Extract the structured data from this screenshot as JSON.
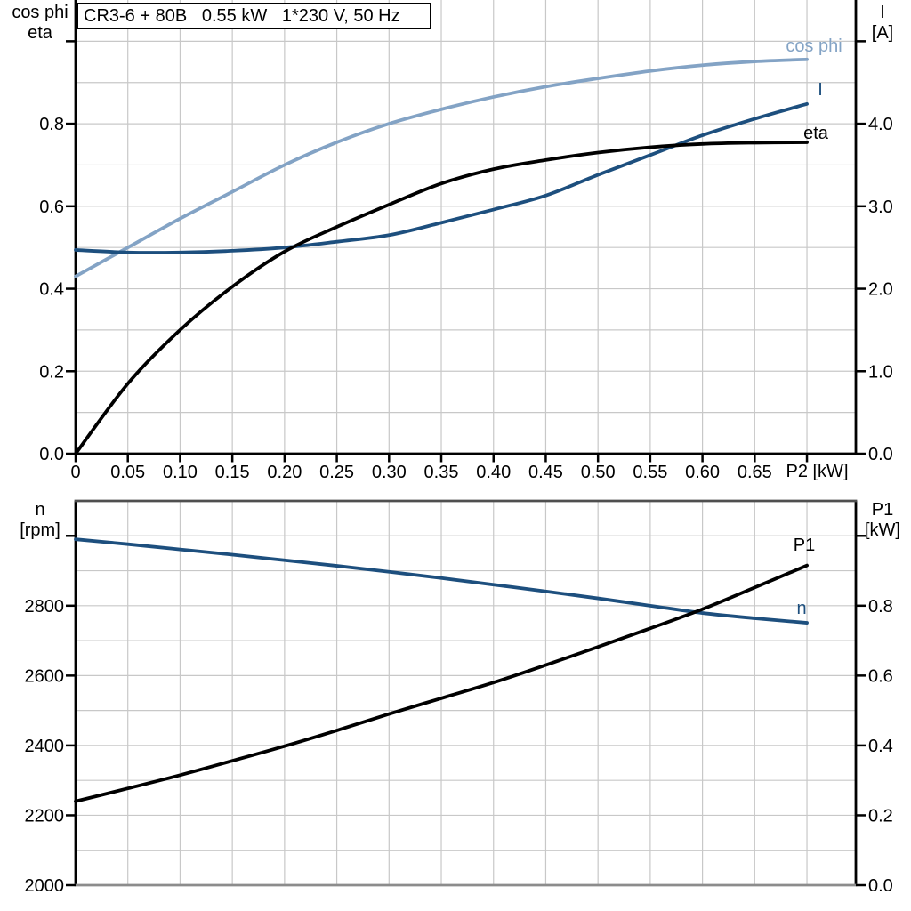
{
  "title_box": {
    "text": "CR3-6 + 80B   0.55 kW   1*230 V, 50 Hz"
  },
  "colors": {
    "black": "#000000",
    "dark_blue": "#1d4f7e",
    "light_blue": "#83a3c5",
    "grid": "#c8c8c8",
    "axis": "#000000",
    "frame_top_gray": "#4f4f4f",
    "frame_bottom_gray": "#8c8c8c",
    "background": "#ffffff"
  },
  "chart_data": [
    {
      "type": "line",
      "position": "top",
      "x_axis": {
        "end_label": "P2 [kW]",
        "range": [
          0,
          0.7468
        ],
        "tick_values": [
          0,
          0.05,
          0.1,
          0.15,
          0.2,
          0.25,
          0.3,
          0.35,
          0.4,
          0.45,
          0.5,
          0.55,
          0.6,
          0.65
        ],
        "tick_labels": [
          "0",
          "0.05",
          "0.10",
          "0.15",
          "0.20",
          "0.25",
          "0.30",
          "0.35",
          "0.40",
          "0.45",
          "0.50",
          "0.55",
          "0.60",
          "0.65"
        ],
        "grid_step": 0.05,
        "grid_max": 0.7
      },
      "left_axis": {
        "title_lines": [
          "cos phi",
          "eta"
        ],
        "range": [
          0,
          1.1
        ],
        "tick_values": [
          0.8,
          0.6,
          0.4,
          0.2,
          0.0
        ],
        "tick_labels": [
          "0.8",
          "0.6",
          "0.4",
          "0.2",
          "0.0"
        ],
        "unlabeled_tick_values": [
          1.0
        ],
        "grid_step": 0.1,
        "grid_max": 1.0
      },
      "right_axis": {
        "title_lines": [
          "I",
          "[A]"
        ],
        "range": [
          0,
          5.5
        ],
        "tick_values": [
          4.0,
          3.0,
          2.0,
          1.0,
          0.0
        ],
        "tick_labels": [
          "4.0",
          "3.0",
          "2.0",
          "1.0",
          "0.0"
        ],
        "unlabeled_tick_values": [
          5.0
        ]
      },
      "series": [
        {
          "name": "cos phi",
          "label": "cos phi",
          "axis": "left",
          "color": "light_blue",
          "x": [
            0,
            0.05,
            0.1,
            0.15,
            0.2,
            0.25,
            0.3,
            0.35,
            0.4,
            0.45,
            0.5,
            0.55,
            0.6,
            0.65,
            0.7
          ],
          "y": [
            0.43,
            0.5,
            0.57,
            0.635,
            0.7,
            0.755,
            0.8,
            0.835,
            0.865,
            0.89,
            0.91,
            0.928,
            0.942,
            0.951,
            0.956
          ]
        },
        {
          "name": "I",
          "label": "I",
          "axis": "right",
          "color": "dark_blue",
          "x": [
            0,
            0.05,
            0.1,
            0.15,
            0.2,
            0.25,
            0.3,
            0.35,
            0.4,
            0.45,
            0.5,
            0.55,
            0.6,
            0.65,
            0.7
          ],
          "y": [
            2.47,
            2.44,
            2.44,
            2.46,
            2.5,
            2.57,
            2.65,
            2.8,
            2.96,
            3.13,
            3.38,
            3.62,
            3.86,
            4.06,
            4.24
          ]
        },
        {
          "name": "eta",
          "label": "eta",
          "axis": "left",
          "color": "black",
          "x": [
            0,
            0.05,
            0.1,
            0.15,
            0.2,
            0.25,
            0.3,
            0.35,
            0.4,
            0.45,
            0.5,
            0.55,
            0.6,
            0.65,
            0.7
          ],
          "y": [
            0.0,
            0.17,
            0.3,
            0.405,
            0.49,
            0.55,
            0.604,
            0.655,
            0.69,
            0.712,
            0.73,
            0.743,
            0.751,
            0.754,
            0.755
          ]
        }
      ]
    },
    {
      "type": "line",
      "position": "bottom",
      "x_axis": {
        "end_label": "",
        "range": [
          0,
          0.7468
        ],
        "tick_values": [],
        "tick_labels": [],
        "grid_step": 0.05,
        "grid_max": 0.7
      },
      "left_axis": {
        "title_lines": [
          "n",
          "[rpm]"
        ],
        "range": [
          2000,
          3100
        ],
        "tick_values": [
          2800,
          2600,
          2400,
          2200,
          2000
        ],
        "tick_labels": [
          "2800",
          "2600",
          "2400",
          "2200",
          "2000"
        ],
        "unlabeled_tick_values": [
          3000
        ],
        "grid_step": 100,
        "grid_max": 3000
      },
      "right_axis": {
        "title_lines": [
          "P1",
          "[kW]"
        ],
        "range": [
          0,
          1.1
        ],
        "tick_values": [
          0.8,
          0.6,
          0.4,
          0.2,
          0.0
        ],
        "tick_labels": [
          "0.8",
          "0.6",
          "0.4",
          "0.2",
          "0.0"
        ],
        "unlabeled_tick_values": [
          1.0
        ]
      },
      "series": [
        {
          "name": "n",
          "label": "n",
          "axis": "left",
          "color": "dark_blue",
          "x": [
            0,
            0.05,
            0.1,
            0.15,
            0.2,
            0.25,
            0.3,
            0.35,
            0.4,
            0.45,
            0.5,
            0.55,
            0.6,
            0.65,
            0.7
          ],
          "y": [
            2990,
            2976,
            2961,
            2946,
            2930,
            2914,
            2897,
            2879,
            2860,
            2841,
            2821,
            2800,
            2779,
            2764,
            2751
          ]
        },
        {
          "name": "P1",
          "label": "P1",
          "axis": "right",
          "color": "black",
          "x": [
            0,
            0.05,
            0.1,
            0.15,
            0.2,
            0.25,
            0.3,
            0.35,
            0.4,
            0.45,
            0.5,
            0.55,
            0.6,
            0.65,
            0.7
          ],
          "y": [
            0.24,
            0.277,
            0.315,
            0.356,
            0.398,
            0.443,
            0.49,
            0.535,
            0.58,
            0.63,
            0.682,
            0.735,
            0.79,
            0.852,
            0.915
          ]
        }
      ]
    }
  ]
}
